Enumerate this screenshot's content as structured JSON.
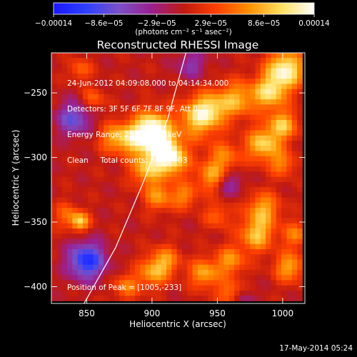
{
  "chart_data": {
    "type": "heatmap",
    "title": "Reconstructed RHESSI Image",
    "xlabel": "Heliocentric X (arcsec)",
    "ylabel": "Heliocentric Y (arcsec)",
    "xlim": [
      823,
      1017
    ],
    "ylim": [
      -413,
      -219
    ],
    "x_ticks": [
      850,
      900,
      950,
      1000
    ],
    "x_tick_labels": [
      "850",
      "900",
      "950",
      "1000"
    ],
    "y_ticks": [
      -250,
      -300,
      -350,
      -400
    ],
    "y_tick_labels": [
      "−250",
      "−300",
      "−350",
      "−400"
    ],
    "colorbar": {
      "range": [
        -0.00014,
        0.00014
      ],
      "tick_values": [
        -0.00014,
        -8.6e-05,
        -2.9e-05,
        2.9e-05,
        8.6e-05,
        0.00014
      ],
      "tick_labels": [
        "−0.00014",
        "−8.6e−05",
        "−2.9e−05",
        "2.9e−05",
        "8.6e−05",
        "0.00014"
      ],
      "units": "(photons cm⁻² s⁻¹ asec⁻²)",
      "colors": [
        "#1818ff",
        "#2f40ff",
        "#7a50c8",
        "#9a2090",
        "#c01a10",
        "#ff4000",
        "#ff9000",
        "#ffe060",
        "#ffffff"
      ]
    },
    "limb_points": [
      [
        848,
        -413
      ],
      [
        872,
        -370
      ],
      [
        893,
        -320
      ],
      [
        912,
        -270
      ],
      [
        926,
        -219
      ]
    ],
    "peak_position": [
      1005,
      -233
    ],
    "blobs": [
      {
        "x": 1002,
        "y": -232,
        "amp": 0.00013,
        "r": 10
      },
      {
        "x": 990,
        "y": -250,
        "amp": 0.0001,
        "r": 9
      },
      {
        "x": 965,
        "y": -255,
        "amp": 8e-05,
        "r": 10
      },
      {
        "x": 935,
        "y": -270,
        "amp": 9e-05,
        "r": 11
      },
      {
        "x": 945,
        "y": -262,
        "amp": 7e-05,
        "r": 9
      },
      {
        "x": 900,
        "y": -275,
        "amp": 0.0001,
        "r": 9
      },
      {
        "x": 905,
        "y": -290,
        "amp": 0.00012,
        "r": 10
      },
      {
        "x": 885,
        "y": -285,
        "amp": 9e-05,
        "r": 9
      },
      {
        "x": 870,
        "y": -285,
        "amp": 6e-05,
        "r": 8
      },
      {
        "x": 915,
        "y": -302,
        "amp": 0.00011,
        "r": 9
      },
      {
        "x": 895,
        "y": -310,
        "amp": 8e-05,
        "r": 8
      },
      {
        "x": 905,
        "y": -330,
        "amp": 7e-05,
        "r": 8
      },
      {
        "x": 925,
        "y": -330,
        "amp": 6e-05,
        "r": 7
      },
      {
        "x": 945,
        "y": -315,
        "amp": 7e-05,
        "r": 8
      },
      {
        "x": 955,
        "y": -300,
        "amp": 6e-05,
        "r": 9
      },
      {
        "x": 985,
        "y": -290,
        "amp": 0.0001,
        "r": 9
      },
      {
        "x": 1000,
        "y": -275,
        "amp": 9e-05,
        "r": 8
      },
      {
        "x": 1000,
        "y": -305,
        "amp": 6e-05,
        "r": 7
      },
      {
        "x": 985,
        "y": -340,
        "amp": 8e-05,
        "r": 9
      },
      {
        "x": 980,
        "y": -360,
        "amp": 9e-05,
        "r": 9
      },
      {
        "x": 960,
        "y": -380,
        "amp": 7e-05,
        "r": 8
      },
      {
        "x": 940,
        "y": -390,
        "amp": 8e-05,
        "r": 8
      },
      {
        "x": 910,
        "y": -380,
        "amp": 7e-05,
        "r": 8
      },
      {
        "x": 900,
        "y": -390,
        "amp": 7e-05,
        "r": 8
      },
      {
        "x": 880,
        "y": -400,
        "amp": 6e-05,
        "r": 7
      },
      {
        "x": 1005,
        "y": -385,
        "amp": 8e-05,
        "r": 8
      },
      {
        "x": 1010,
        "y": -360,
        "amp": 6e-05,
        "r": 7
      },
      {
        "x": 835,
        "y": -345,
        "amp": 5e-05,
        "r": 7
      },
      {
        "x": 845,
        "y": -350,
        "amp": 9e-05,
        "r": 5
      },
      {
        "x": 950,
        "y": -345,
        "amp": 5e-05,
        "r": 7
      },
      {
        "x": 960,
        "y": -405,
        "amp": 6e-05,
        "r": 7
      },
      {
        "x": 845,
        "y": -232,
        "amp": 5e-05,
        "r": 6
      },
      {
        "x": 855,
        "y": -255,
        "amp": 5e-05,
        "r": 6
      },
      {
        "x": 840,
        "y": -270,
        "amp": -8e-05,
        "r": 9
      },
      {
        "x": 850,
        "y": -380,
        "amp": -0.00012,
        "r": 10
      },
      {
        "x": 930,
        "y": -228,
        "amp": -5e-05,
        "r": 8
      },
      {
        "x": 960,
        "y": -320,
        "amp": -5e-05,
        "r": 7
      },
      {
        "x": 970,
        "y": -410,
        "amp": -4e-05,
        "r": 6
      }
    ]
  },
  "header": {
    "lines": [
      "24-Jun-2012 04:09:08.000 to 04:14:34.000",
      "Detectors: 3F 5F 6F 7F 8F 9F, Att 0",
      "Energy Range: 25.0 - 50.0 keV",
      "Clean     Total counts: 6.85E+03"
    ]
  },
  "peak_label": "Position of Peak = [1005,-233]",
  "timestamp": "17-May-2014 05:24"
}
